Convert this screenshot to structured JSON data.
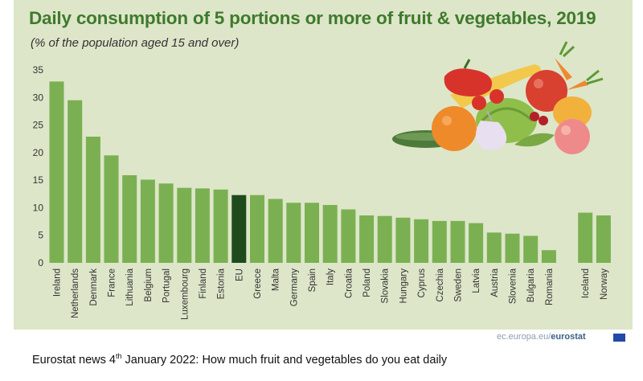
{
  "header": {
    "title": "Daily consumption of 5 portions or more of fruit & vegetables, 2019",
    "subtitle": "(% of  the population aged 15 and over)"
  },
  "credit": {
    "prefix": "ec.europa.eu/",
    "bold": "eurostat"
  },
  "caption": {
    "prefix": "Eurostat news 4",
    "superscript": "th",
    "rest": " January 2022: How much fruit and vegetables do you eat daily"
  },
  "colors": {
    "bar": "#7bb052",
    "highlight": "#1f4a1c",
    "panel": "#dde6c9",
    "title": "#3f7a2c"
  },
  "illustration": {
    "icon": "fruit-vegetables-illustration"
  },
  "chart_data": {
    "type": "bar",
    "ylim": [
      0,
      35
    ],
    "yticks": [
      0,
      5,
      10,
      15,
      20,
      25,
      30,
      35
    ],
    "grid": false,
    "legend": "none",
    "highlight": "EU",
    "categories": [
      "Ireland",
      "Netherlands",
      "Denmark",
      "France",
      "Lithuania",
      "Belgium",
      "Portugal",
      "Luxembourg",
      "Finland",
      "Estonia",
      "EU",
      "Greece",
      "Malta",
      "Germany",
      "Spain",
      "Italy",
      "Croatia",
      "Poland",
      "Slovakia",
      "Hungary",
      "Cyprus",
      "Czechia",
      "Sweden",
      "Latvia",
      "Austria",
      "Slovenia",
      "Bulgaria",
      "Romania",
      "",
      "Iceland",
      "Norway"
    ],
    "values": [
      32.9,
      29.5,
      22.9,
      19.5,
      15.9,
      15.1,
      14.4,
      13.6,
      13.5,
      13.3,
      12.3,
      12.3,
      11.6,
      10.9,
      10.9,
      10.5,
      9.7,
      8.6,
      8.5,
      8.2,
      7.9,
      7.6,
      7.6,
      7.2,
      5.5,
      5.3,
      4.9,
      2.3,
      null,
      9.1,
      8.6
    ]
  }
}
